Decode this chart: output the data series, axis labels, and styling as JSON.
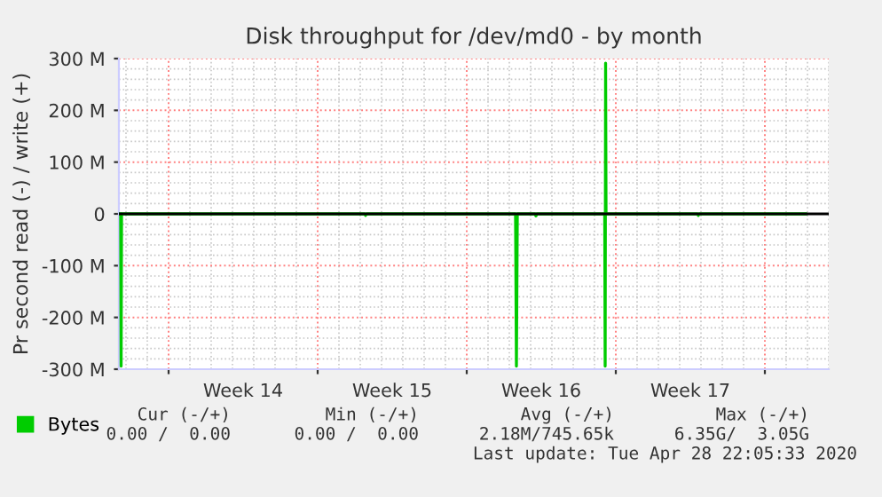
{
  "chart_data": {
    "type": "line",
    "title": "Disk throughput for /dev/md0 - by month",
    "ylabel": "Pr second read (-) / write (+)",
    "x": [
      "2020-03-27T16:00",
      "2020-03-27T18:00",
      "2020-03-27T18:30",
      "2020-03-27T19:00",
      "2020-04-08T05:00",
      "2020-04-08T06:00",
      "2020-04-08T07:00",
      "2020-04-15T07:00",
      "2020-04-15T08:00",
      "2020-04-15T09:00",
      "2020-04-16T05:00",
      "2020-04-16T06:00",
      "2020-04-16T07:00",
      "2020-04-19T11:30",
      "2020-04-19T12:00",
      "2020-04-19T12:30",
      "2020-04-19T13:00",
      "2020-04-23T20:00",
      "2020-04-23T21:00",
      "2020-04-23T22:00",
      "2020-04-28T22:00"
    ],
    "series": [
      {
        "name": "Bytes",
        "color": "#00cc00",
        "values": [
          0,
          0,
          -294000000,
          0,
          0,
          -3000000,
          0,
          0,
          -294000000,
          0,
          0,
          -4000000,
          0,
          0,
          -294000000,
          291000000,
          0,
          0,
          -3000000,
          0,
          0
        ]
      }
    ],
    "xlim": [
      "2020-03-27T16:00",
      "2020-04-30T00:00"
    ],
    "xticks": [
      {
        "value": "2020-03-30",
        "label": null
      },
      {
        "value": "2020-04-02T12:00",
        "label": "Week 14"
      },
      {
        "value": "2020-04-06",
        "label": null
      },
      {
        "value": "2020-04-09T12:00",
        "label": "Week 15"
      },
      {
        "value": "2020-04-13",
        "label": null
      },
      {
        "value": "2020-04-16T12:00",
        "label": "Week 16"
      },
      {
        "value": "2020-04-20",
        "label": null
      },
      {
        "value": "2020-04-23T12:00",
        "label": "Week 17"
      },
      {
        "value": "2020-04-27",
        "label": null
      }
    ],
    "ylim": [
      -300000000,
      300000000
    ],
    "yticks": [
      {
        "value": -300000000,
        "label": "-300 M"
      },
      {
        "value": -200000000,
        "label": "-200 M"
      },
      {
        "value": -100000000,
        "label": "-100 M"
      },
      0,
      {
        "value": 100000000,
        "label": "100 M"
      },
      {
        "value": 200000000,
        "label": "200 M"
      },
      {
        "value": 300000000,
        "label": "300 M"
      }
    ],
    "ref_lines": [
      {
        "axis": "y",
        "value": 0,
        "label": null,
        "color": "#000000"
      }
    ],
    "grid": true,
    "legend": "bottom left",
    "marker": "none",
    "line_style": "solid",
    "annotations": [
      "Cur (-/+)",
      "Min (-/+)",
      "Avg (-/+)",
      "Max (-/+)",
      "0.00 /  0.00",
      "0.00 /  0.00",
      "2.18M/745.65k",
      "6.35G/  3.05G",
      "Last update: Tue Apr 28 22:05:33 2020"
    ]
  }
}
